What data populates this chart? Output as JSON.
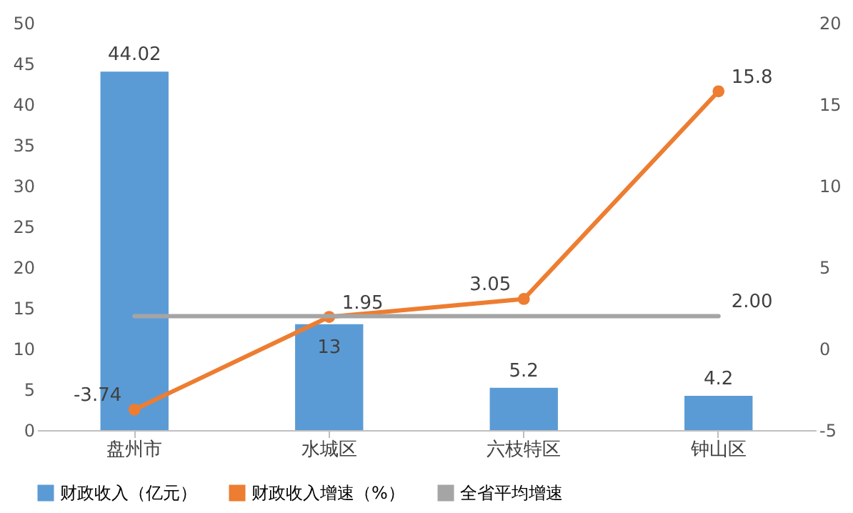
{
  "chart_data": {
    "type": "bar",
    "categories": [
      "盘州市",
      "水城区",
      "六枝特区",
      "钟山区"
    ],
    "series": [
      {
        "name": "财政收入（亿元）",
        "color": "#5b9bd5",
        "values": [
          44.02,
          13,
          5.2,
          4.2
        ],
        "value_labels": [
          "44.02",
          "13",
          "5.2",
          "4.2"
        ]
      },
      {
        "name": "财政收入增速（%）",
        "type": "line",
        "axis": "y2",
        "marker": "circle",
        "color": "#ed7d31",
        "values": [
          -3.74,
          1.95,
          3.05,
          15.8
        ],
        "value_labels": [
          "-3.74",
          "1.95",
          "3.05",
          "15.8"
        ]
      },
      {
        "name": "全省平均增速",
        "type": "line",
        "axis": "y2",
        "marker": "none",
        "color": "#a5a5a5",
        "values": [
          2,
          2,
          2,
          2
        ],
        "value_labels": [
          null,
          null,
          null,
          "2.00"
        ]
      }
    ],
    "ylim": [
      0,
      50
    ],
    "yticks": [
      0,
      5,
      10,
      15,
      20,
      25,
      30,
      35,
      40,
      45,
      50
    ],
    "y2lim": [
      -5,
      20
    ],
    "y2ticks": [
      -5,
      0,
      5,
      10,
      15,
      20
    ],
    "grid": false,
    "legend": "bottom"
  }
}
